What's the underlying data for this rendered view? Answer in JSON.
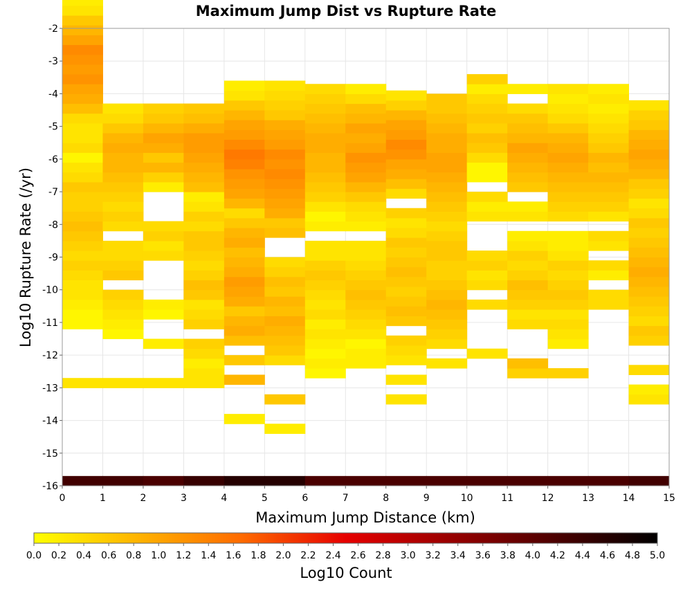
{
  "chart_data": {
    "type": "heatmap",
    "title": "Maximum Jump Dist vs Rupture Rate",
    "xlabel": "Maximum Jump Distance (km)",
    "ylabel": "Log10 Rupture Rate (/yr)",
    "xlim": [
      0,
      15
    ],
    "ylim": [
      -16,
      -2
    ],
    "xticks": [
      "0",
      "1",
      "2",
      "3",
      "4",
      "5",
      "6",
      "7",
      "8",
      "9",
      "10",
      "11",
      "12",
      "13",
      "14",
      "15"
    ],
    "yticks": [
      "-2",
      "-3",
      "-4",
      "-5",
      "-6",
      "-7",
      "-8",
      "-9",
      "-10",
      "-11",
      "-12",
      "-13",
      "-14",
      "-15",
      "-16"
    ],
    "x_bin_width": 1,
    "y_bin_height": 0.3,
    "colorbar": {
      "label": "Log10 Count",
      "range": [
        0,
        5
      ],
      "ticks": [
        "0.0",
        "0.2",
        "0.4",
        "0.6",
        "0.8",
        "1.0",
        "1.2",
        "1.4",
        "1.6",
        "1.8",
        "2.0",
        "2.2",
        "2.4",
        "2.6",
        "2.8",
        "3.0",
        "3.2",
        "3.4",
        "3.6",
        "3.8",
        "4.0",
        "4.2",
        "4.4",
        "4.6",
        "4.8",
        "5.0"
      ],
      "colors": [
        "#ffff00",
        "#ffb300",
        "#ff6a00",
        "#e60000",
        "#990000",
        "#4d0000",
        "#000000"
      ]
    },
    "columns": [
      {
        "x": 0,
        "bottom_row": {
          "y": -16,
          "value": 4.3
        },
        "ymin": -13.0,
        "ymax": -2.7,
        "values": [
          0.3,
          null,
          null,
          null,
          null,
          null,
          0.1,
          0.1,
          0.2,
          0.3,
          0.3,
          0.4,
          0.5,
          0.4,
          0.5,
          0.6,
          0.7,
          0.6,
          0.5,
          0.5,
          0.6,
          0.4,
          0.3,
          0.1,
          0.4,
          0.3,
          0.3,
          0.4,
          0.7,
          0.9,
          1.0,
          1.2,
          1.1,
          1.2,
          1.3,
          1.0,
          0.8,
          0.6,
          0.3,
          0.2
        ]
      },
      {
        "x": 1,
        "bottom_row": {
          "y": -16,
          "value": 4.3
        },
        "ymin": -13.0,
        "ymax": -3.9,
        "values": [
          0.3,
          null,
          null,
          null,
          null,
          0.1,
          0.2,
          0.3,
          0.4,
          0.5,
          null,
          0.6,
          0.5,
          0.4,
          0.4,
          null,
          0.4,
          0.5,
          0.4,
          0.5,
          0.6,
          0.7,
          0.8,
          0.8,
          0.9,
          0.8,
          0.6,
          0.4,
          0.3
        ]
      },
      {
        "x": 2,
        "bottom_row": {
          "y": -16,
          "value": 4.2
        },
        "ymin": -13.0,
        "ymax": -3.9,
        "values": [
          0.3,
          null,
          null,
          null,
          0.2,
          null,
          null,
          0.1,
          0.2,
          null,
          null,
          null,
          null,
          0.4,
          0.3,
          0.5,
          0.4,
          null,
          null,
          null,
          0.2,
          0.5,
          0.8,
          0.6,
          0.9,
          1.0,
          0.8,
          0.6,
          0.5
        ]
      },
      {
        "x": 3,
        "bottom_row": {
          "y": -16,
          "value": 4.4
        },
        "ymin": -13.0,
        "ymax": -3.9,
        "values": [
          0.3,
          0.3,
          0.2,
          0.4,
          0.5,
          null,
          0.5,
          0.4,
          0.3,
          0.6,
          0.7,
          0.5,
          0.4,
          0.5,
          0.6,
          0.6,
          0.4,
          0.5,
          0.3,
          0.2,
          0.7,
          0.8,
          0.9,
          1.0,
          1.1,
          1.1,
          0.9,
          0.7,
          0.6
        ]
      },
      {
        "x": 4,
        "bottom_row": {
          "y": -16,
          "value": 4.6
        },
        "ymin": -14.1,
        "ymax": -3.6,
        "values": [
          0.2,
          null,
          null,
          null,
          0.8,
          null,
          0.6,
          null,
          0.7,
          0.9,
          0.8,
          0.6,
          0.9,
          1.0,
          1.1,
          0.9,
          0.8,
          0.7,
          0.9,
          0.8,
          0.6,
          0.4,
          0.8,
          1.0,
          1.1,
          1.2,
          1.4,
          1.5,
          1.3,
          1.1,
          1.0,
          0.8,
          0.6,
          0.3,
          0.2
        ]
      },
      {
        "x": 5,
        "bottom_row": {
          "y": -16,
          "value": 4.6
        },
        "ymin": -14.4,
        "ymax": -3.6,
        "values": [
          0.2,
          null,
          null,
          0.6,
          null,
          null,
          null,
          0.4,
          0.6,
          0.7,
          0.8,
          0.9,
          0.7,
          0.8,
          0.6,
          0.7,
          0.5,
          0.4,
          null,
          null,
          0.7,
          0.6,
          0.9,
          1.0,
          1.1,
          1.2,
          1.3,
          1.2,
          1.3,
          1.1,
          1.0,
          0.9,
          0.6,
          0.5,
          0.4,
          0.3
        ]
      },
      {
        "x": 6,
        "bottom_row": {
          "y": -16,
          "value": 4.2
        },
        "ymin": -12.7,
        "ymax": -3.9,
        "values": [
          0.1,
          0.2,
          0.1,
          0.2,
          0.3,
          0.2,
          0.4,
          0.3,
          0.4,
          0.5,
          0.6,
          0.5,
          0.3,
          0.3,
          null,
          0.2,
          0.1,
          0.3,
          0.5,
          0.6,
          0.7,
          0.8,
          0.8,
          0.9,
          0.9,
          0.8,
          0.7,
          0.6,
          0.5,
          0.4
        ]
      },
      {
        "x": 7,
        "bottom_row": {
          "y": -16,
          "value": 4.2
        },
        "ymin": -12.4,
        "ymax": -3.9,
        "values": [
          0.2,
          0.2,
          0.1,
          0.3,
          0.4,
          0.5,
          0.6,
          0.7,
          0.6,
          0.5,
          0.4,
          0.3,
          0.3,
          null,
          0.2,
          0.3,
          0.4,
          0.6,
          0.8,
          1.0,
          1.1,
          1.2,
          1.0,
          0.9,
          1.0,
          0.8,
          0.7,
          0.4,
          0.2
        ]
      },
      {
        "x": 8,
        "bottom_row": {
          "y": -16,
          "value": 4.2
        },
        "ymin": -13.5,
        "ymax": -3.9,
        "values": [
          0.3,
          null,
          0.3,
          null,
          0.3,
          0.4,
          0.5,
          null,
          0.6,
          0.7,
          0.6,
          0.5,
          0.6,
          0.7,
          0.6,
          0.5,
          0.6,
          0.4,
          0.3,
          0.5,
          null,
          0.4,
          0.7,
          0.9,
          1.0,
          1.2,
          1.3,
          1.1,
          1.0,
          0.8,
          0.5,
          0.3
        ]
      },
      {
        "x": 9,
        "bottom_row": {
          "y": -16,
          "value": 4.2
        },
        "ymin": -12.4,
        "ymax": -4.2,
        "values": [
          0.3,
          null,
          0.4,
          0.5,
          0.6,
          0.7,
          0.8,
          0.7,
          0.6,
          0.5,
          0.5,
          0.6,
          0.6,
          0.5,
          0.4,
          0.5,
          0.6,
          0.7,
          0.8,
          0.9,
          1.0,
          1.0,
          0.9,
          0.9,
          0.8,
          0.7,
          0.6,
          0.6
        ]
      },
      {
        "x": 10,
        "bottom_row": {
          "y": -16,
          "value": 4.2
        },
        "ymin": -12.1,
        "ymax": -3.9,
        "values": [
          0.3,
          null,
          null,
          null,
          null,
          0.4,
          null,
          0.4,
          0.3,
          0.5,
          0.4,
          null,
          null,
          null,
          0.3,
          0.2,
          0.4,
          null,
          0.1,
          0.1,
          0.4,
          0.6,
          0.7,
          0.5,
          0.6,
          0.5,
          0.4,
          0.2,
          0.5
        ]
      },
      {
        "x": 11,
        "bottom_row": {
          "y": -16,
          "value": 4.2
        },
        "ymin": -12.7,
        "ymax": -3.6,
        "values": [
          0.5,
          0.7,
          null,
          null,
          null,
          0.4,
          0.3,
          0.5,
          0.6,
          0.7,
          0.5,
          0.4,
          0.5,
          0.3,
          0.2,
          null,
          0.3,
          0.2,
          null,
          0.6,
          0.7,
          0.8,
          0.9,
          1.0,
          0.8,
          0.7,
          0.6,
          0.4,
          null,
          0.2
        ]
      },
      {
        "x": 12,
        "bottom_row": {
          "y": -16,
          "value": 4.2
        },
        "ymin": -12.7,
        "ymax": -3.6,
        "values": [
          0.5,
          null,
          null,
          0.2,
          0.3,
          0.4,
          0.3,
          0.5,
          0.6,
          0.5,
          0.4,
          0.5,
          0.3,
          0.2,
          0.2,
          null,
          0.4,
          0.5,
          0.6,
          0.7,
          0.8,
          0.9,
          1.0,
          0.9,
          0.8,
          0.6,
          0.4,
          0.3,
          0.2,
          0.3
        ]
      },
      {
        "x": 13,
        "bottom_row": {
          "y": -16,
          "value": 4.2
        },
        "ymin": -10.6,
        "ymax": -3.6,
        "values": [
          0.4,
          0.4,
          null,
          0.2,
          0.4,
          null,
          0.3,
          0.4,
          null,
          0.3,
          0.5,
          0.6,
          0.7,
          0.8,
          0.7,
          0.8,
          0.6,
          0.5,
          0.4,
          0.3,
          0.2,
          0.3,
          0.2
        ]
      },
      {
        "x": 14,
        "bottom_row": {
          "y": -16,
          "value": 4.3
        },
        "ymin": -13.5,
        "ymax": -4.2,
        "values": [
          0.3,
          0.2,
          null,
          0.4,
          null,
          null,
          0.5,
          0.6,
          0.4,
          0.5,
          0.6,
          0.7,
          0.8,
          0.9,
          0.8,
          0.7,
          0.6,
          0.5,
          0.6,
          0.4,
          0.3,
          0.5,
          0.6,
          0.8,
          0.9,
          1.0,
          0.9,
          0.8,
          0.6,
          0.5,
          0.3
        ]
      }
    ]
  }
}
